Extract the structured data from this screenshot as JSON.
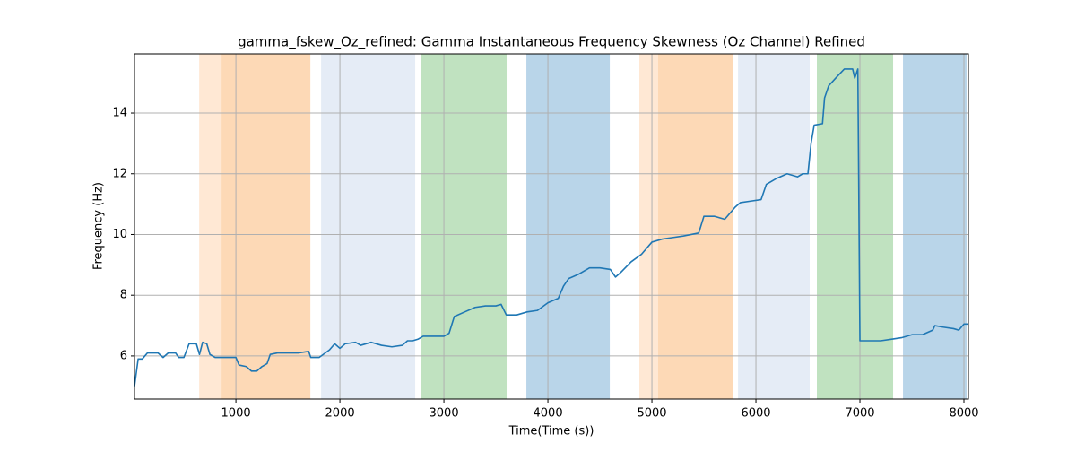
{
  "chart_data": {
    "type": "line",
    "title": "gamma_fskew_Oz_refined: Gamma Instantaneous Frequency Skewness (Oz Channel) Refined",
    "xlabel": "Time(Time (s))",
    "ylabel": "Frequency (Hz)",
    "x": [
      25,
      60,
      100,
      150,
      250,
      300,
      350,
      420,
      450,
      500,
      550,
      620,
      650,
      680,
      720,
      750,
      800,
      900,
      1000,
      1030,
      1100,
      1150,
      1200,
      1250,
      1300,
      1330,
      1400,
      1500,
      1600,
      1700,
      1720,
      1800,
      1900,
      1950,
      2000,
      2050,
      2150,
      2200,
      2300,
      2400,
      2500,
      2600,
      2650,
      2700,
      2750,
      2800,
      2900,
      3000,
      3050,
      3100,
      3200,
      3300,
      3400,
      3500,
      3550,
      3600,
      3700,
      3800,
      3900,
      4000,
      4100,
      4150,
      4200,
      4300,
      4400,
      4500,
      4600,
      4650,
      4700,
      4800,
      4900,
      5000,
      5100,
      5200,
      5300,
      5450,
      5500,
      5600,
      5700,
      5800,
      5850,
      5950,
      6050,
      6100,
      6200,
      6300,
      6400,
      6450,
      6500,
      6530,
      6560,
      6640,
      6660,
      6700,
      6780,
      6850,
      6930,
      6950,
      6980,
      7000,
      7100,
      7200,
      7300,
      7400,
      7500,
      7600,
      7700,
      7720,
      7800,
      7900,
      7950,
      8000,
      8043
    ],
    "series": [
      {
        "name": "gamma_fskew_Oz_refined",
        "color": "#1f77b4",
        "values": [
          5.0,
          5.9,
          5.9,
          6.1,
          6.1,
          5.95,
          6.1,
          6.1,
          5.95,
          5.95,
          6.4,
          6.4,
          6.05,
          6.45,
          6.4,
          6.05,
          5.95,
          5.95,
          5.95,
          5.7,
          5.65,
          5.5,
          5.5,
          5.65,
          5.75,
          6.05,
          6.1,
          6.1,
          6.1,
          6.15,
          5.95,
          5.95,
          6.2,
          6.4,
          6.25,
          6.4,
          6.45,
          6.35,
          6.45,
          6.35,
          6.3,
          6.35,
          6.5,
          6.5,
          6.55,
          6.65,
          6.65,
          6.65,
          6.75,
          7.3,
          7.45,
          7.6,
          7.65,
          7.65,
          7.7,
          7.35,
          7.35,
          7.45,
          7.5,
          7.75,
          7.9,
          8.3,
          8.55,
          8.7,
          8.9,
          8.9,
          8.85,
          8.6,
          8.75,
          9.1,
          9.35,
          9.75,
          9.85,
          9.9,
          9.95,
          10.05,
          10.6,
          10.6,
          10.5,
          10.9,
          11.05,
          11.1,
          11.15,
          11.65,
          11.85,
          12.0,
          11.9,
          12.0,
          12.0,
          13.0,
          13.6,
          13.65,
          14.5,
          14.9,
          15.2,
          15.45,
          15.45,
          15.15,
          15.45,
          6.5,
          6.5,
          6.5,
          6.55,
          6.6,
          6.7,
          6.7,
          6.85,
          7.0,
          6.95,
          6.9,
          6.85,
          7.05,
          7.05
        ]
      }
    ],
    "spans": [
      {
        "start": 647,
        "end": 862,
        "color": "#ffe8d4"
      },
      {
        "start": 862,
        "end": 1716,
        "color": "#fdd9b6"
      },
      {
        "start": 1819,
        "end": 2724,
        "color": "#e5ecf6"
      },
      {
        "start": 2776,
        "end": 3603,
        "color": "#c0e2c0"
      },
      {
        "start": 3793,
        "end": 4595,
        "color": "#b9d5e9"
      },
      {
        "start": 4879,
        "end": 5060,
        "color": "#ffe8d4"
      },
      {
        "start": 5060,
        "end": 5776,
        "color": "#fdd9b6"
      },
      {
        "start": 5828,
        "end": 6517,
        "color": "#e5ecf6"
      },
      {
        "start": 6586,
        "end": 7319,
        "color": "#c0e2c0"
      },
      {
        "start": 7414,
        "end": 8026,
        "color": "#b9d5e9"
      }
    ],
    "xlim": [
      25,
      8043
    ],
    "ylim": [
      4.58,
      15.95
    ],
    "xticks": [
      1000,
      2000,
      3000,
      4000,
      5000,
      6000,
      7000,
      8000
    ],
    "yticks": [
      6,
      8,
      10,
      12,
      14
    ],
    "grid": true
  }
}
